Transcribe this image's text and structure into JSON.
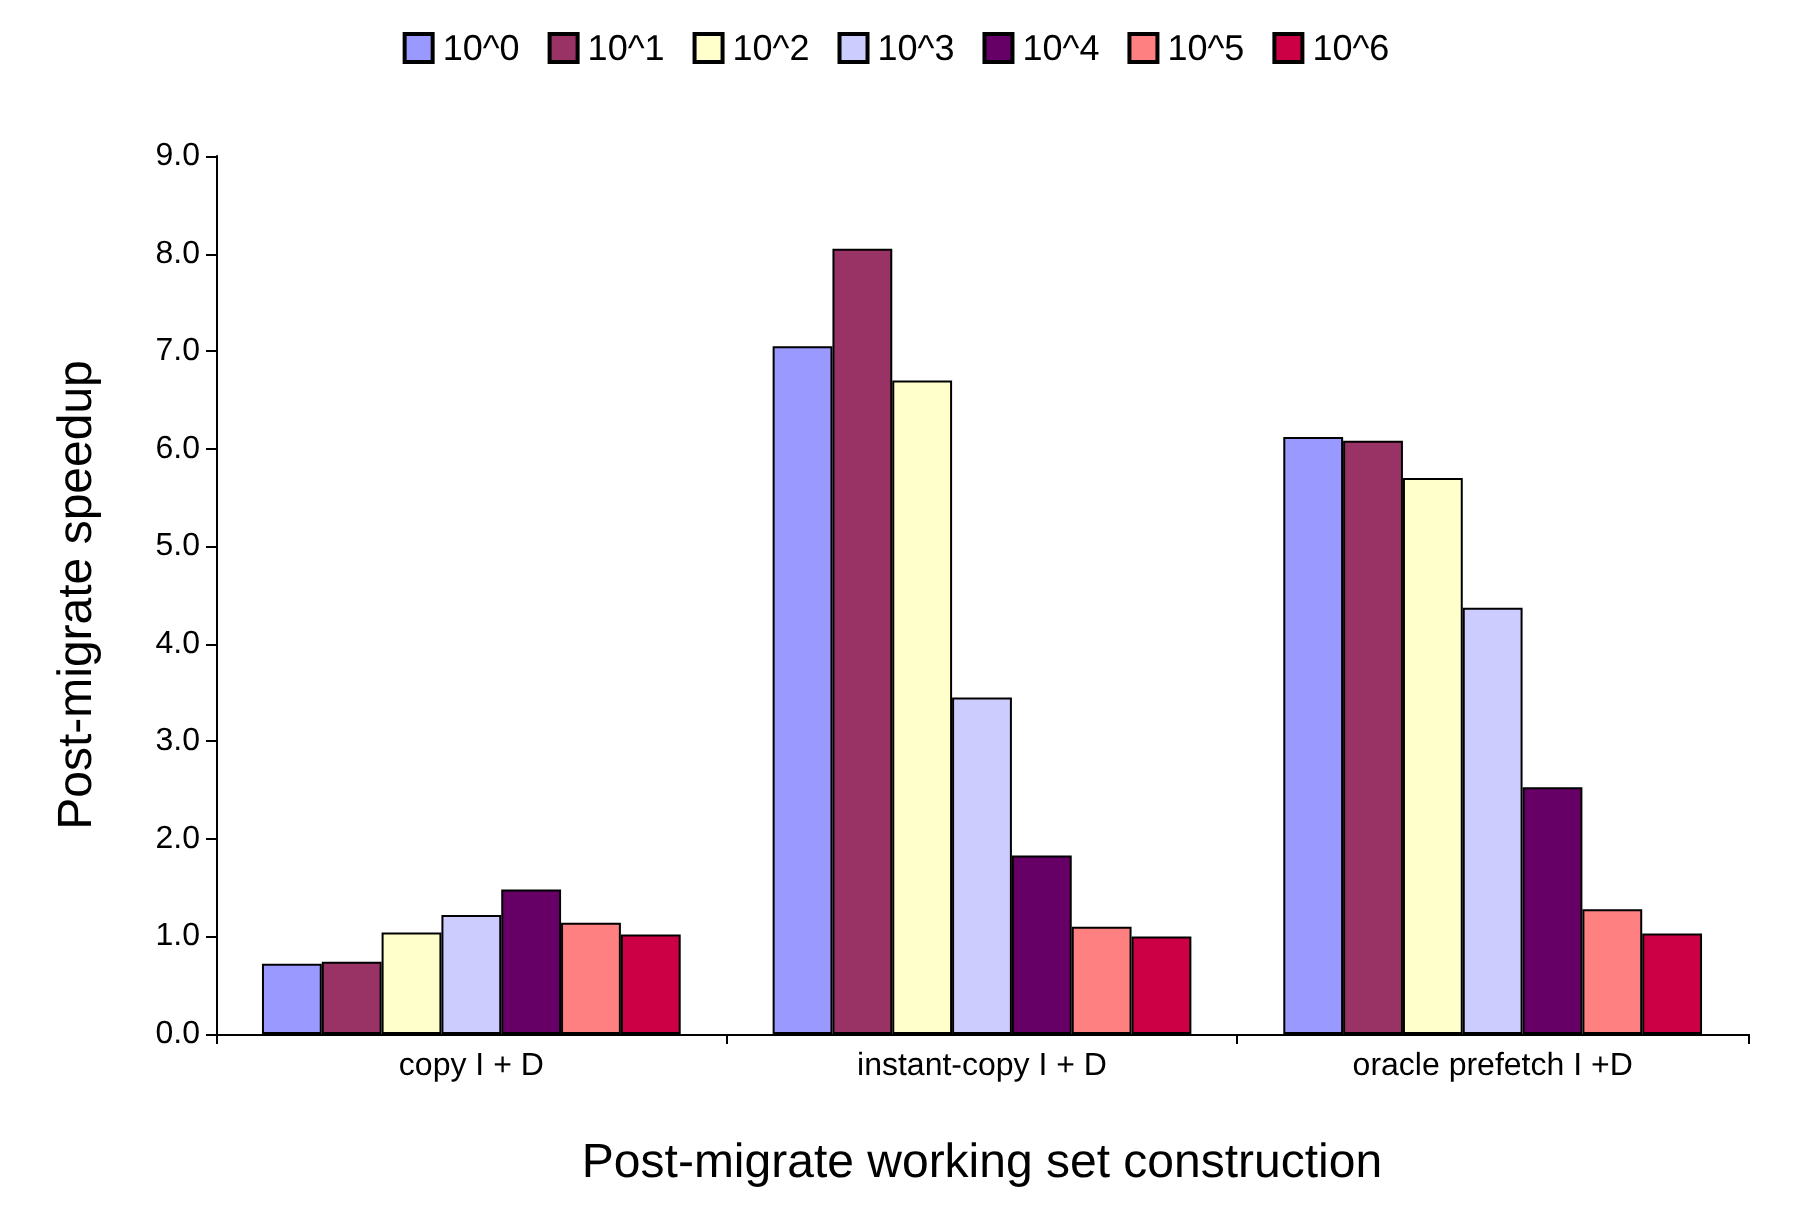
{
  "chart_data": {
    "type": "bar",
    "xlabel": "Post-migrate working set construction",
    "ylabel": "Post-migrate speedup",
    "categories": [
      "copy I + D",
      "instant-copy I + D",
      "oracle prefetch I +D"
    ],
    "series": [
      {
        "name": "10^0",
        "color": "#9999ff",
        "values": [
          0.72,
          7.05,
          6.12
        ]
      },
      {
        "name": "10^1",
        "color": "#993366",
        "values": [
          0.74,
          8.05,
          6.08
        ]
      },
      {
        "name": "10^2",
        "color": "#ffffcc",
        "values": [
          1.04,
          6.7,
          5.7
        ]
      },
      {
        "name": "10^3",
        "color": "#ccccff",
        "values": [
          1.22,
          3.45,
          4.37
        ]
      },
      {
        "name": "10^4",
        "color": "#660066",
        "values": [
          1.48,
          1.83,
          2.53
        ]
      },
      {
        "name": "10^5",
        "color": "#ff8080",
        "values": [
          1.14,
          1.1,
          1.28
        ]
      },
      {
        "name": "10^6",
        "color": "#cc0044",
        "values": [
          1.02,
          1.0,
          1.03
        ]
      }
    ],
    "ylim": [
      0,
      9
    ],
    "yticks": [
      {
        "value": 0,
        "label": "0.0"
      },
      {
        "value": 1,
        "label": "1.0"
      },
      {
        "value": 2,
        "label": "2.0"
      },
      {
        "value": 3,
        "label": "3.0"
      },
      {
        "value": 4,
        "label": "4.0"
      },
      {
        "value": 5,
        "label": "5.0"
      },
      {
        "value": 6,
        "label": "6.0"
      },
      {
        "value": 7,
        "label": "7.0"
      },
      {
        "value": 8,
        "label": "8.0"
      },
      {
        "value": 9,
        "label": "9.0"
      }
    ],
    "grid": false,
    "legend": "top"
  }
}
